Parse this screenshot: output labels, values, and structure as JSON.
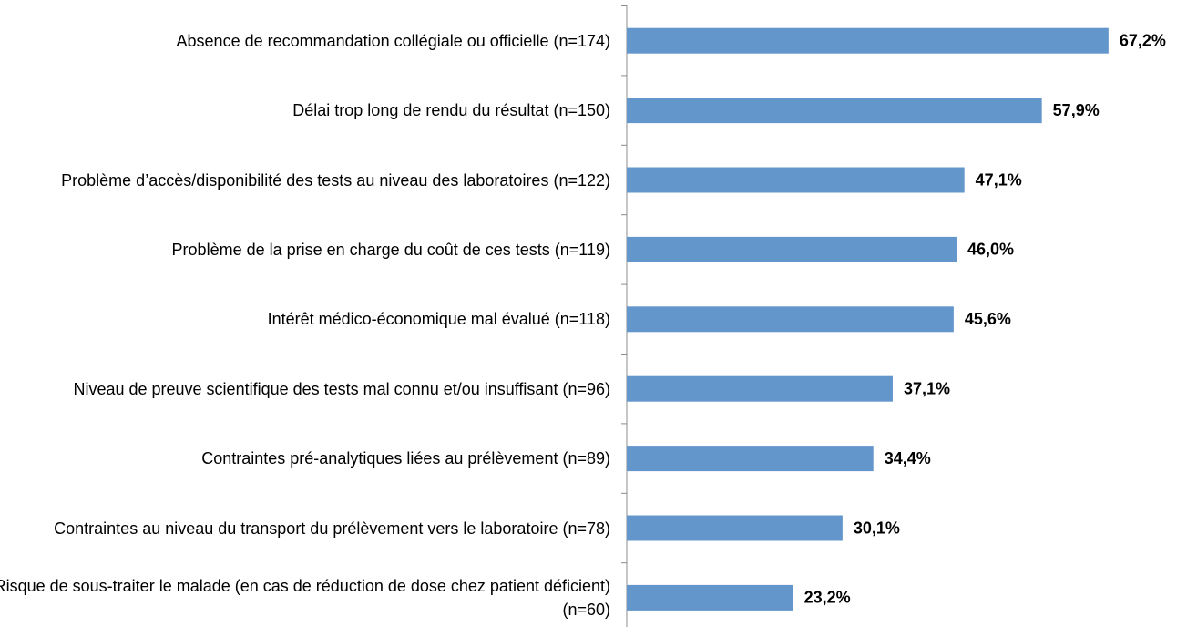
{
  "chart_data": {
    "type": "bar",
    "orientation": "horizontal",
    "color": "#6397cc",
    "categories": [
      "Absence de recommandation collégiale ou officielle (n=174)",
      "Délai trop long de rendu du résultat (n=150)",
      "Problème d’accès/disponibilité des tests au niveau des laboratoires (n=122)",
      "Problème de la prise en charge du coût de ces tests (n=119)",
      "Intérêt médico-économique mal évalué (n=118)",
      "Niveau de preuve scientifique des tests mal connu et/ou insuffisant (n=96)",
      "Contraintes pré-analytiques liées au prélèvement (n=89)",
      "Contraintes au niveau du transport du prélèvement vers le laboratoire (n=78)",
      "Risque de sous-traiter le malade (en cas de réduction de dose chez patient déficient) (n=60)"
    ],
    "values": [
      67.2,
      57.9,
      47.1,
      46.0,
      45.6,
      37.1,
      34.4,
      30.1,
      23.2
    ],
    "value_labels": [
      "67,2%",
      "57,9%",
      "47,1%",
      "46,0%",
      "45,6%",
      "37,1%",
      "34,4%",
      "30,1%",
      "23,2%"
    ]
  }
}
